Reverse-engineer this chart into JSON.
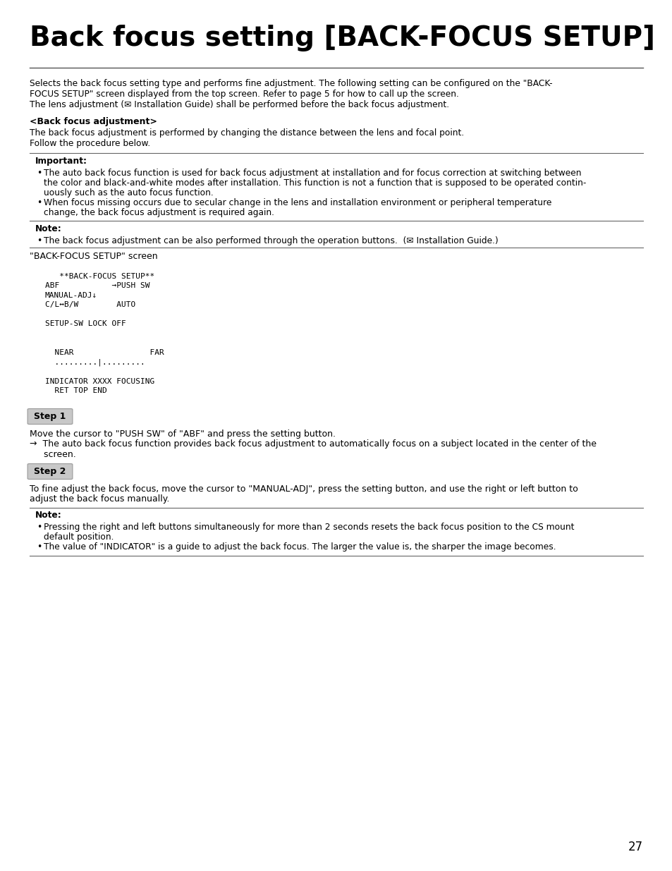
{
  "title": "Back focus setting [BACK-FOCUS SETUP]",
  "bg_color": "#ffffff",
  "page_number": "27",
  "intro_line1": "Selects the back focus setting type and performs fine adjustment. The following setting can be configured on the \"BACK-",
  "intro_line2": "FOCUS SETUP\" screen displayed from the top screen. Refer to page 5 for how to call up the screen.",
  "intro_line3": "The lens adjustment (✉ Installation Guide) shall be performed before the back focus adjustment.",
  "bfa_heading": "<Back focus adjustment>",
  "bfa_line1": "The back focus adjustment is performed by changing the distance between the lens and focal point.",
  "bfa_line2": "Follow the procedure below.",
  "important_heading": "Important:",
  "imp_bullet1_lines": [
    "The auto back focus function is used for back focus adjustment at installation and for focus correction at switching between",
    "the color and black-and-white modes after installation. This function is not a function that is supposed to be operated contin-",
    "uously such as the auto focus function."
  ],
  "imp_bullet2_lines": [
    "When focus missing occurs due to secular change in the lens and installation environment or peripheral temperature",
    "change, the back focus adjustment is required again."
  ],
  "note1_heading": "Note:",
  "note1_bullet": "The back focus adjustment can be also performed through the operation buttons.  (✉ Installation Guide.)",
  "screen_label": "\"BACK-FOCUS SETUP\" screen",
  "screen_lines": [
    "   **BACK-FOCUS SETUP**",
    "ABF           →PUSH SW",
    "MANUAL-ADJ↓",
    "C/L↔B/W        AUTO",
    "",
    "SETUP-SW LOCK OFF",
    "",
    "",
    "  NEAR                FAR",
    "  .........|.........",
    "",
    "INDICATOR XXXX FOCUSING",
    "  RET TOP END"
  ],
  "step1_heading": "Step 1",
  "step1_line1": "Move the cursor to \"PUSH SW\" of \"ABF\" and press the setting button.",
  "step1_line2": "→  The auto back focus function provides back focus adjustment to automatically focus on a subject located in the center of the",
  "step1_line3": "     screen.",
  "step2_heading": "Step 2",
  "step2_line1": "To fine adjust the back focus, move the cursor to \"MANUAL-ADJ\", press the setting button, and use the right or left button to",
  "step2_line2": "adjust the back focus manually.",
  "note2_heading": "Note:",
  "note2_bullet1_lines": [
    "Pressing the right and left buttons simultaneously for more than 2 seconds resets the back focus position to the CS mount",
    "default position."
  ],
  "note2_bullet2_lines": [
    "The value of \"INDICATOR\" is a guide to adjust the back focus. The larger the value is, the sharper the image becomes."
  ]
}
